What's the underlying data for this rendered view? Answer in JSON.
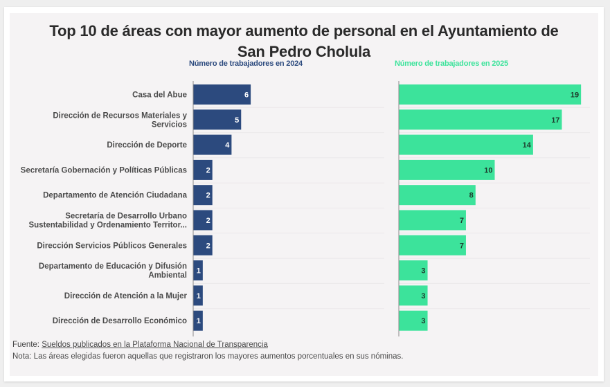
{
  "title_line1": "Top 10 de áreas con mayor aumento de personal en el Ayuntamiento de",
  "title_line2": "San Pedro Cholula",
  "colors": {
    "series_2024": "#2c4a7e",
    "series_2025": "#3ce39b",
    "header_2024": "#2c4a7e",
    "header_2025": "#3ce39b",
    "label_2024_text": "#ffffff",
    "label_2025_text": "#1d3b2c"
  },
  "chart_data": {
    "type": "bar",
    "orientation": "horizontal",
    "title": "Top 10 de áreas con mayor aumento de personal en el Ayuntamiento de San Pedro Cholula",
    "categories": [
      [
        "Casa del Abue"
      ],
      [
        "Dirección de Recursos Materiales y",
        "Servicios"
      ],
      [
        "Dirección de Deporte"
      ],
      [
        "Secretaría Gobernación y Políticas Públicas"
      ],
      [
        "Departamento de Atención Ciudadana"
      ],
      [
        "Secretaría de Desarrollo Urbano",
        "Sustentabilidad y Ordenamiento Territor..."
      ],
      [
        "Dirección Servicios Públicos Generales"
      ],
      [
        "Departamento de Educación y Difusión",
        "Ambiental"
      ],
      [
        "Dirección de Atención a la Mujer"
      ],
      [
        "Dirección de Desarrollo Económico"
      ]
    ],
    "series": [
      {
        "name": "Número de trabajadores en 2024",
        "values": [
          6,
          5,
          4,
          2,
          2,
          2,
          2,
          1,
          1,
          1
        ]
      },
      {
        "name": "Número de trabajadores en 2025",
        "values": [
          19,
          17,
          14,
          10,
          8,
          7,
          7,
          3,
          3,
          3
        ]
      }
    ],
    "xlim": [
      0,
      20
    ],
    "grid": false,
    "data_labels": true
  },
  "footer": {
    "source_prefix": "Fuente: ",
    "source_link": "Sueldos publicados en la Plataforma Nacional de Transparencia",
    "note": "Nota: Las áreas elegidas fueron aquellas que registraron los mayores aumentos porcentuales en sus nóminas."
  }
}
